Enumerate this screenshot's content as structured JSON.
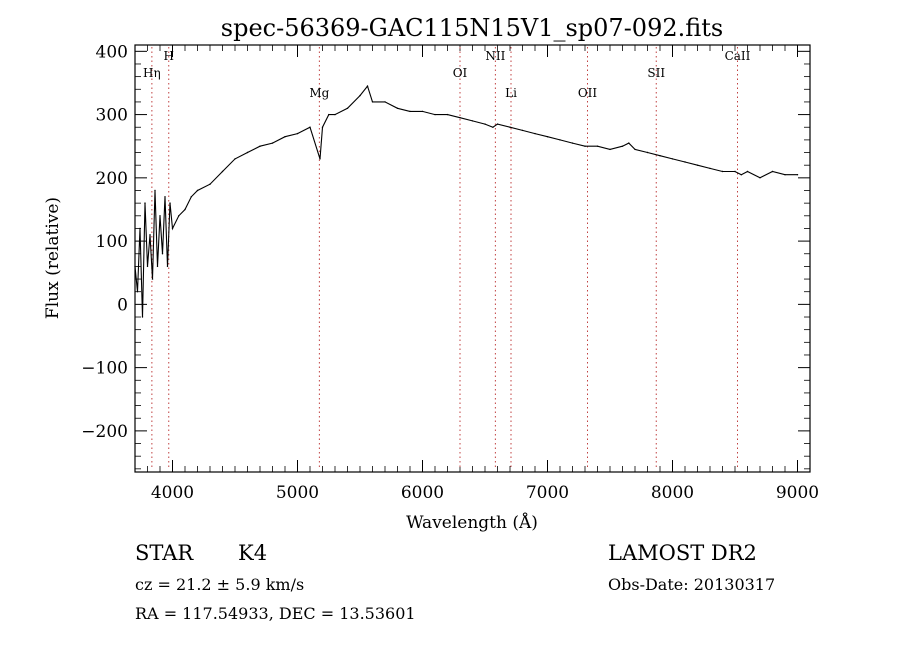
{
  "chart_data": {
    "type": "line",
    "title": "spec-56369-GAC115N15V1_sp07-092.fits",
    "xlabel": "Wavelength (Å)",
    "ylabel": "Flux (relative)",
    "xlim": [
      3700,
      9100
    ],
    "ylim": [
      -265,
      410
    ],
    "x_ticks": [
      4000,
      5000,
      6000,
      7000,
      8000,
      9000
    ],
    "y_ticks": [
      -200,
      -100,
      0,
      100,
      200,
      300,
      400
    ],
    "grid": false,
    "series": [
      {
        "x": [
          3700,
          3720,
          3740,
          3760,
          3780,
          3800,
          3820,
          3840,
          3860,
          3880,
          3900,
          3920,
          3940,
          3960,
          3980,
          4000,
          4050,
          4100,
          4150,
          4200,
          4300,
          4400,
          4500,
          4600,
          4700,
          4800,
          4900,
          5000,
          5100,
          5180,
          5200,
          5250,
          5300,
          5400,
          5500,
          5560,
          5600,
          5700,
          5800,
          5900,
          6000,
          6100,
          6200,
          6300,
          6400,
          6500,
          6563,
          6600,
          6700,
          6800,
          6900,
          7000,
          7100,
          7200,
          7300,
          7400,
          7500,
          7600,
          7650,
          7700,
          7800,
          7900,
          8000,
          8100,
          8200,
          8300,
          8400,
          8500,
          8550,
          8600,
          8700,
          8800,
          8900,
          9000
        ],
        "y": [
          60,
          20,
          120,
          -20,
          160,
          60,
          110,
          40,
          180,
          60,
          140,
          80,
          170,
          60,
          160,
          120,
          140,
          150,
          170,
          180,
          190,
          210,
          230,
          240,
          250,
          255,
          265,
          270,
          280,
          230,
          280,
          300,
          300,
          310,
          330,
          345,
          320,
          320,
          310,
          305,
          305,
          300,
          300,
          295,
          290,
          285,
          280,
          285,
          280,
          275,
          270,
          265,
          260,
          255,
          250,
          250,
          245,
          250,
          255,
          245,
          240,
          235,
          230,
          225,
          220,
          215,
          210,
          210,
          205,
          210,
          200,
          210,
          205,
          205
        ]
      }
    ],
    "lines": [
      {
        "name": "Hη",
        "x": 3835
      },
      {
        "name": "H",
        "x": 3970
      },
      {
        "name": "Mg",
        "x": 5175
      },
      {
        "name": "OI",
        "x": 6300
      },
      {
        "name": "NII",
        "x": 6583
      },
      {
        "name": "Li",
        "x": 6708
      },
      {
        "name": "OII",
        "x": 7320
      },
      {
        "name": "SII",
        "x": 7870
      },
      {
        "name": "CaII",
        "x": 8520
      }
    ]
  },
  "info": {
    "object": "STAR",
    "subclass": "K4",
    "survey": "LAMOST DR2",
    "cz": "cz = 21.2 ± 5.9 km/s",
    "obs_date": "Obs-Date: 20130317",
    "coords": "RA = 117.54933, DEC =  13.53601"
  }
}
